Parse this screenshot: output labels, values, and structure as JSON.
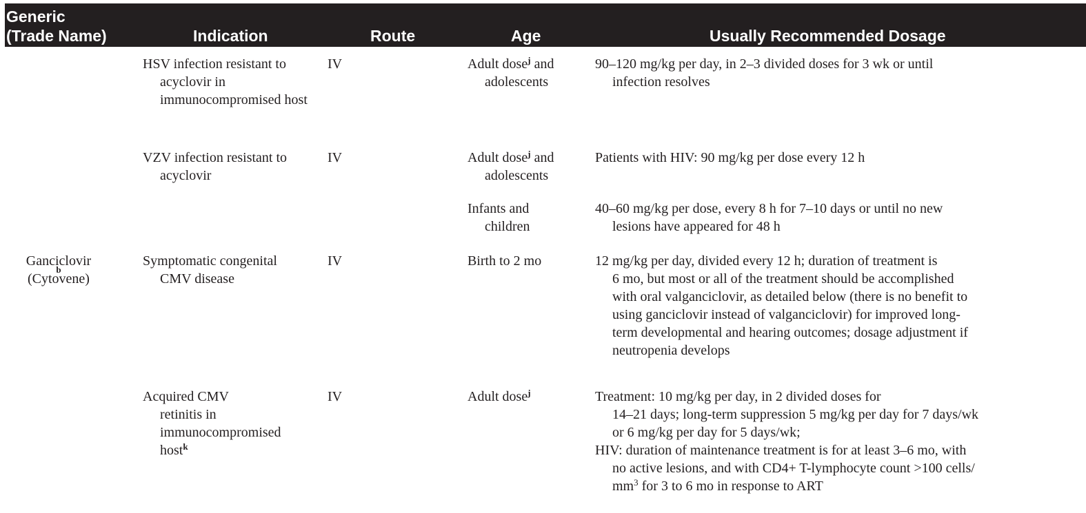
{
  "header": {
    "generic_line1": "Generic",
    "generic_line2": "(Trade Name)",
    "indication": "Indication",
    "route": "Route",
    "age": "Age",
    "dosage": "Usually Recommended Dosage"
  },
  "rows": {
    "r1": {
      "indication_l1": "HSV infection resistant",
      "indication_rest": "to acyclovir in immunocompromised host",
      "route": "IV",
      "age_a": "Adult dose",
      "age_sup": "j",
      "age_b": " and",
      "age_l2": "adolescents",
      "dose_l1": "90–120 mg/kg per day, in 2–3 divided doses for 3 wk or until",
      "dose_l2": "infection resolves"
    },
    "r2": {
      "indication_l1": "VZV infection resistant to",
      "indication_l2": "acyclovir",
      "route": "IV",
      "age_a": "Adult dose",
      "age_sup": "j",
      "age_b": " and",
      "age_l2": "adolescents",
      "dose_l1": "Patients with HIV: 90 mg/kg per dose every 12 h"
    },
    "r3": {
      "age_l1": "Infants and",
      "age_l2": "children",
      "dose_l1": "40–60 mg/kg per dose, every 8 h for 7–10 days or until no new",
      "dose_l2": "lesions have appeared for 48 h"
    },
    "r4": {
      "generic": "Ganciclovir",
      "generic_sup": "b",
      "trade": "(Cytovene)",
      "indication_l1": "Symptomatic congenital",
      "indication_l2": "CMV disease",
      "route": "IV",
      "age": "Birth to 2 mo",
      "dose_l1": "12 mg/kg per day, divided every 12 h; duration of treatment is",
      "dose_l2": "6 mo, but most or all of the treatment should be accomplished",
      "dose_l3": "with oral valganciclovir, as detailed below (there is no benefit to",
      "dose_l4": "using ganciclovir instead of valganciclovir) for improved long-",
      "dose_l5": "term developmental and hearing outcomes; dosage adjustment if",
      "dose_l6": "neutropenia develops"
    },
    "r5": {
      "indication_l1": "Acquired CMV",
      "indication_l2": "retinitis in",
      "indication_l3": "immunocompromised",
      "indication_l4": "host",
      "indication_sup": "k",
      "route": "IV",
      "age": "Adult dose",
      "age_sup": "j",
      "dose_l1": "Treatment: 10 mg/kg per day, in 2 divided doses for",
      "dose_l2": "14–21 days; long-term suppression 5 mg/kg per day for 7 days/wk",
      "dose_l3": "or 6 mg/kg per day for 5 days/wk;",
      "dose_l4": "HIV: duration of maintenance treatment is for at least 3–6 mo, with",
      "dose_l5": "no active lesions, and with CD4+ T-lymphocyte count >100 cells/",
      "dose_l6a": "mm",
      "dose_l6sup": "3",
      "dose_l6b": " for 3 to 6 mo in response to ART"
    }
  }
}
